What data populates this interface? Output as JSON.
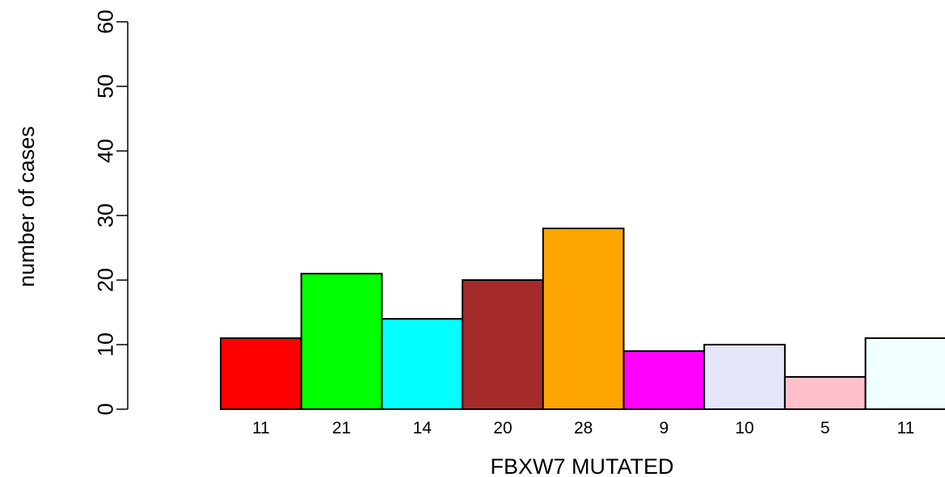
{
  "chart_data": {
    "type": "bar",
    "title": "",
    "xlabel": "FBXW7 MUTATED",
    "ylabel": "number of cases",
    "ylim": [
      0,
      60
    ],
    "yticks": [
      0,
      10,
      20,
      30,
      40,
      50,
      60
    ],
    "categories": [
      "11",
      "21",
      "14",
      "20",
      "28",
      "9",
      "10",
      "5",
      "11"
    ],
    "values": [
      11,
      21,
      14,
      20,
      28,
      9,
      10,
      5,
      11
    ],
    "colors": [
      "#ff0000",
      "#00ff00",
      "#00ffff",
      "#a52a2a",
      "#ffa500",
      "#ff00ff",
      "#e6e6fa",
      "#ffc0cb",
      "#f0ffff"
    ],
    "grid": false
  }
}
